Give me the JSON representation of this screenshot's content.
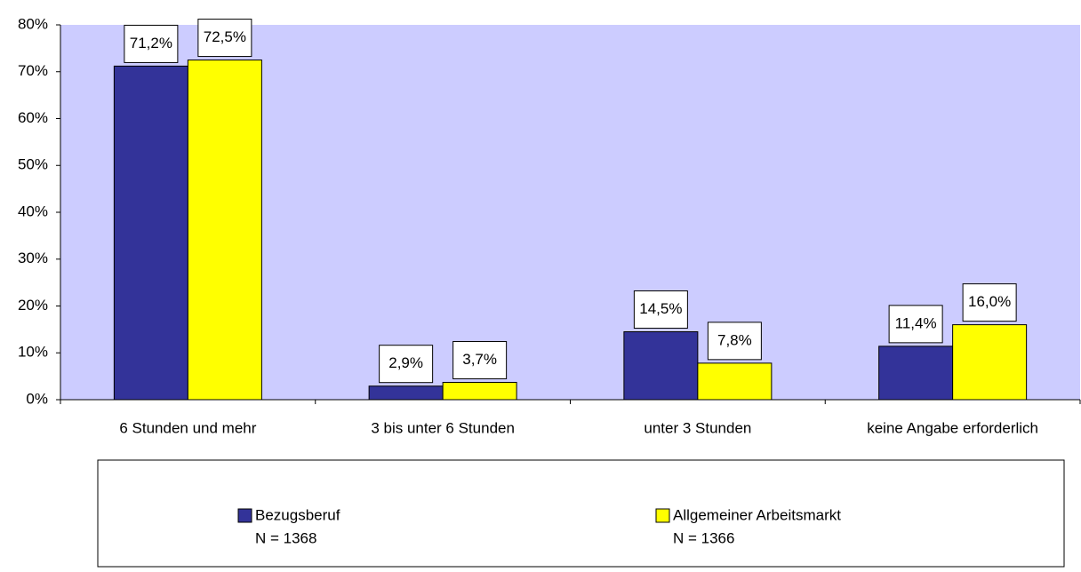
{
  "chart_data": {
    "type": "bar",
    "categories": [
      "6 Stunden und mehr",
      "3 bis unter 6 Stunden",
      "unter 3 Stunden",
      "keine Angabe erforderlich"
    ],
    "series": [
      {
        "name": "Bezugsberuf",
        "legend_note": "N = 1368",
        "color": "#333399",
        "values": [
          71.2,
          2.9,
          14.5,
          11.4
        ],
        "value_labels": [
          "71,2%",
          "2,9%",
          "14,5%",
          "11,4%"
        ]
      },
      {
        "name": "Allgemeiner Arbeitsmarkt",
        "legend_note": "N = 1366",
        "color": "#ffff00",
        "values": [
          72.5,
          3.7,
          7.8,
          16.0
        ],
        "value_labels": [
          "72,5%",
          "3,7%",
          "7,8%",
          "16,0%"
        ]
      }
    ],
    "ylim": [
      0,
      80
    ],
    "yticks": [
      {
        "value": 0,
        "label": "0%"
      },
      {
        "value": 10,
        "label": "10%"
      },
      {
        "value": 20,
        "label": "20%"
      },
      {
        "value": 30,
        "label": "30%"
      },
      {
        "value": 40,
        "label": "40%"
      },
      {
        "value": 50,
        "label": "50%"
      },
      {
        "value": 60,
        "label": "60%"
      },
      {
        "value": 70,
        "label": "70%"
      },
      {
        "value": 80,
        "label": "80%"
      }
    ],
    "plot_background": "#ccccff",
    "legend": "bottom"
  }
}
